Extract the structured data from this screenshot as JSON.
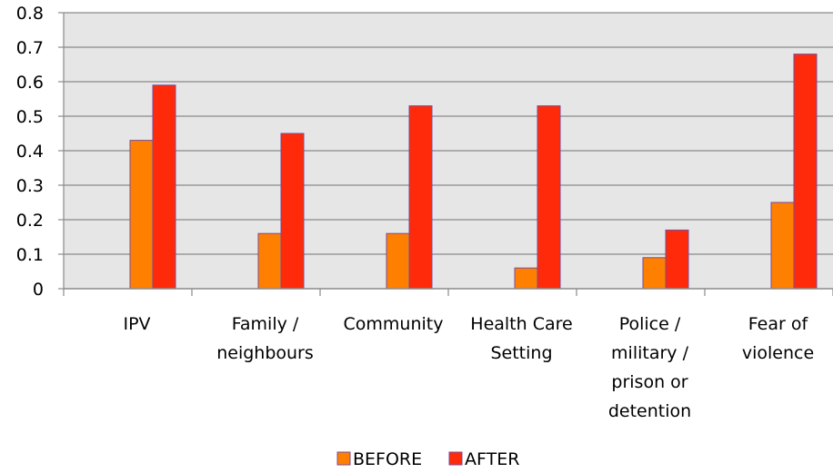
{
  "chart_data": {
    "type": "bar",
    "categories": [
      [
        "IPV"
      ],
      [
        "Family /",
        "neighbours"
      ],
      [
        "Community"
      ],
      [
        "Health Care",
        "Setting"
      ],
      [
        "Police /",
        "military /",
        "prison or",
        "detention"
      ],
      [
        "Fear of",
        "violence"
      ]
    ],
    "series": [
      {
        "name": "BEFORE",
        "color": "#ff8000",
        "values": [
          0.43,
          0.16,
          0.16,
          0.06,
          0.09,
          0.25
        ]
      },
      {
        "name": "AFTER",
        "color": "#ff2a0a",
        "values": [
          0.59,
          0.45,
          0.53,
          0.53,
          0.17,
          0.68
        ]
      }
    ],
    "ylim": [
      0,
      0.8
    ],
    "yticks": [
      "0",
      "0.1",
      "0.2",
      "0.3",
      "0.4",
      "0.5",
      "0.6",
      "0.7",
      "0.8"
    ],
    "grid": true,
    "plot_background": "#e6e6e6",
    "legend_position": "bottom"
  }
}
